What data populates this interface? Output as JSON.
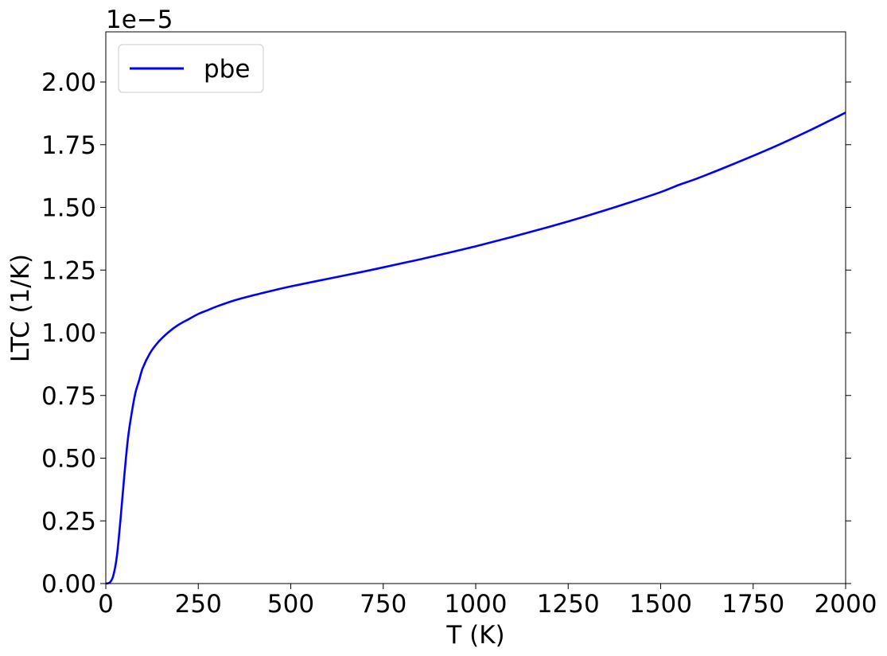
{
  "chart_data": {
    "type": "line",
    "title": "",
    "xlabel": "T (K)",
    "ylabel": "LTC (1/K)",
    "y_offset_label": "1e−5",
    "y_scale": 1e-05,
    "xlim": [
      0,
      2000
    ],
    "ylim": [
      0,
      2.2
    ],
    "x_ticks": [
      0,
      250,
      500,
      750,
      1000,
      1250,
      1500,
      1750,
      2000
    ],
    "x_tick_labels": [
      "0",
      "250",
      "500",
      "750",
      "1000",
      "1250",
      "1500",
      "1750",
      "2000"
    ],
    "y_ticks": [
      0,
      0.25,
      0.5,
      0.75,
      1.0,
      1.25,
      1.5,
      1.75,
      2.0
    ],
    "y_tick_labels": [
      "0.00",
      "0.25",
      "0.50",
      "0.75",
      "1.00",
      "1.25",
      "1.50",
      "1.75",
      "2.00"
    ],
    "grid": false,
    "legend_position": "top-left",
    "series": [
      {
        "name": "pbe",
        "color": "#0000ff",
        "x": [
          0,
          10,
          20,
          30,
          40,
          50,
          60,
          70,
          80,
          90,
          100,
          120,
          140,
          160,
          180,
          200,
          225,
          250,
          275,
          300,
          350,
          400,
          450,
          500,
          600,
          700,
          800,
          850,
          900,
          1000,
          1100,
          1200,
          1300,
          1400,
          1500,
          1550,
          1600,
          1700,
          1800,
          1900,
          2000
        ],
        "values": [
          0.0,
          0.003,
          0.03,
          0.11,
          0.26,
          0.43,
          0.58,
          0.68,
          0.76,
          0.81,
          0.86,
          0.92,
          0.96,
          0.99,
          1.015,
          1.035,
          1.055,
          1.075,
          1.09,
          1.105,
          1.13,
          1.15,
          1.168,
          1.185,
          1.215,
          1.245,
          1.277,
          1.293,
          1.31,
          1.345,
          1.383,
          1.423,
          1.466,
          1.512,
          1.561,
          1.59,
          1.616,
          1.675,
          1.737,
          1.805,
          1.878
        ]
      }
    ]
  }
}
